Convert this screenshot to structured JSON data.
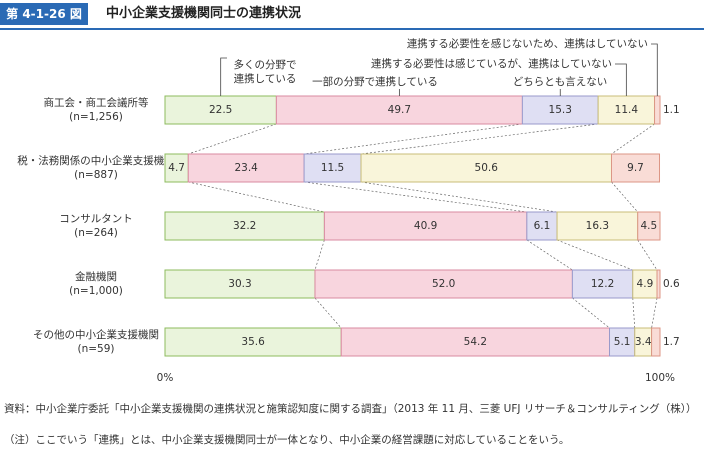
{
  "header": {
    "figure_number": "第 4-1-26 図",
    "title": "中小企業支援機関同士の連携状況"
  },
  "chart_data": {
    "type": "stacked-bar-horizontal",
    "categories": [
      "商工会・商工会議所等",
      "税・法務関係の中小企業支援機関",
      "コンサルタント",
      "金融機関",
      "その他の中小企業支援機関"
    ],
    "sample_sizes": [
      "(n=1,256)",
      "(n=887)",
      "(n=264)",
      "(n=1,000)",
      "(n=59)"
    ],
    "series": [
      {
        "name": "多くの分野で連携している",
        "color": "#eaf4dc",
        "border_color": "#8dbb5e",
        "values": [
          22.5,
          4.7,
          32.2,
          30.3,
          35.6
        ],
        "value_labels": [
          "22.5",
          "4.7",
          "32.2",
          "30.3",
          "35.6"
        ]
      },
      {
        "name": "一部の分野で連携している",
        "color": "#f8d5de",
        "border_color": "#d98aa0",
        "values": [
          49.7,
          23.4,
          40.9,
          52.0,
          54.2
        ],
        "value_labels": [
          "49.7",
          "23.4",
          "40.9",
          "52.0",
          "54.2"
        ]
      },
      {
        "name": "どちらとも言えない",
        "color": "#dfdff3",
        "border_color": "#9a9acb",
        "values": [
          15.3,
          11.5,
          6.1,
          12.2,
          5.1
        ],
        "value_labels": [
          "15.3",
          "11.5",
          "6.1",
          "12.2",
          "5.1"
        ]
      },
      {
        "name": "連携する必要性は感じているが、連携はしていない",
        "color": "#f9f5da",
        "border_color": "#c9bd78",
        "values": [
          11.4,
          50.6,
          16.3,
          4.9,
          3.4
        ],
        "value_labels": [
          "11.4",
          "50.6",
          "16.3",
          "4.9",
          "3.4"
        ]
      },
      {
        "name": "連携する必要性を感じないため、連携はしていない",
        "color": "#f9dcd6",
        "border_color": "#dc9685",
        "values": [
          1.1,
          9.7,
          4.5,
          0.6,
          1.7
        ],
        "value_labels": [
          "1.1",
          "9.7",
          "4.5",
          "0.6",
          "1.7"
        ]
      }
    ],
    "xlim": [
      0,
      100
    ],
    "xticks": [
      {
        "value": 0,
        "label": "0%"
      },
      {
        "value": 100,
        "label": "100%"
      }
    ]
  },
  "footnotes": {
    "source": "資料：中小企業庁委託「中小企業支援機関の連携状況と施策認知度に関する調査」（2013 年 11 月、三菱 UFJ リサーチ＆コンサルティング（株））",
    "note": "（注）ここでいう「連携」とは、中小企業支援機関同士が一体となり、中小企業の経営課題に対応していることをいう。"
  }
}
